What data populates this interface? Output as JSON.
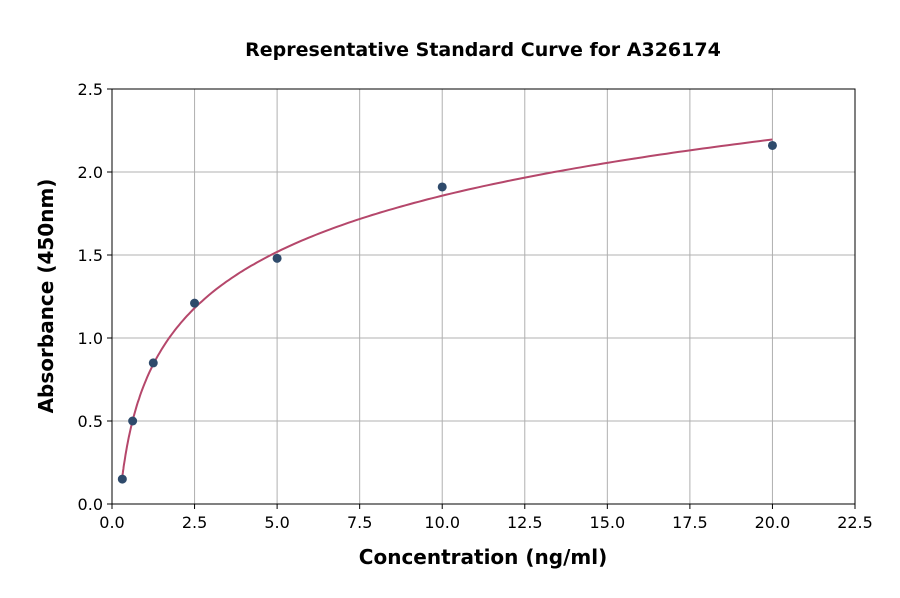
{
  "chart_data": {
    "type": "scatter",
    "title": "Representative Standard Curve for A326174",
    "xlabel": "Concentration (ng/ml)",
    "ylabel": "Absorbance (450nm)",
    "xlim": [
      0,
      22.5
    ],
    "ylim": [
      0,
      2.5
    ],
    "xticks": [
      "0.0",
      "2.5",
      "5.0",
      "7.5",
      "10.0",
      "12.5",
      "15.0",
      "17.5",
      "20.0",
      "22.5"
    ],
    "yticks": [
      "0.0",
      "0.5",
      "1.0",
      "1.5",
      "2.0",
      "2.5"
    ],
    "grid": true,
    "points": {
      "x": [
        0.3125,
        0.625,
        1.25,
        2.5,
        5,
        10,
        20
      ],
      "y": [
        0.15,
        0.5,
        0.85,
        1.21,
        1.48,
        1.91,
        2.16
      ]
    },
    "fit_curve": "smooth fitted standard curve through points",
    "colors": {
      "points": "#2e4a6b",
      "curve": "#b5476b",
      "grid": "#b0b0b0"
    }
  }
}
